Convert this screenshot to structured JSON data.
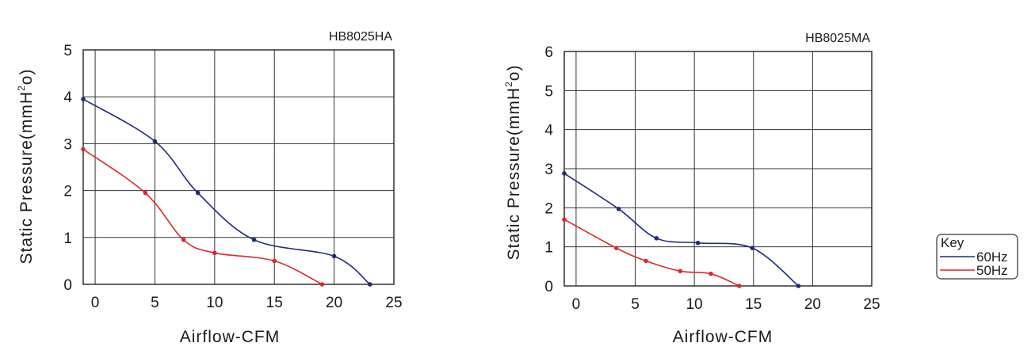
{
  "chart_data": [
    {
      "type": "line",
      "title": "HB8025HA",
      "xlabel": "Airflow-CFM",
      "ylabel_main": "Static Pressure(mmH",
      "ylabel_sup": "2",
      "ylabel_end": "o)",
      "xlim": [
        -1,
        25
      ],
      "ylim": [
        0,
        5
      ],
      "xticks": [
        "0",
        "5",
        "10",
        "15",
        "20",
        "25"
      ],
      "yticks": [
        "0",
        "1",
        "2",
        "3",
        "4",
        "5"
      ],
      "grid": true,
      "series": [
        {
          "name": "60Hz",
          "color": "#1f2a7a",
          "x": [
            -1,
            5,
            8.6,
            13.3,
            20,
            23
          ],
          "y": [
            3.95,
            3.05,
            1.95,
            0.95,
            0.6,
            0
          ]
        },
        {
          "name": "50Hz",
          "color": "#e0262a",
          "x": [
            -1,
            4.2,
            7.4,
            10,
            15,
            19
          ],
          "y": [
            2.88,
            1.95,
            0.95,
            0.67,
            0.5,
            0
          ]
        }
      ]
    },
    {
      "type": "line",
      "title": "HB8025MA",
      "xlabel": "Airflow-CFM",
      "ylabel_main": "Static Pressure(mmH",
      "ylabel_sup": "2",
      "ylabel_end": "o)",
      "xlim": [
        -1,
        25
      ],
      "ylim": [
        0,
        6
      ],
      "xticks": [
        "0",
        "5",
        "10",
        "15",
        "20",
        "25"
      ],
      "yticks": [
        "0",
        "1",
        "2",
        "3",
        "4",
        "5",
        "6"
      ],
      "grid": true,
      "series": [
        {
          "name": "60Hz",
          "color": "#1f2a7a",
          "x": [
            -1,
            3.6,
            6.8,
            10.3,
            14.9,
            18.8
          ],
          "y": [
            2.88,
            1.97,
            1.22,
            1.1,
            0.97,
            0
          ]
        },
        {
          "name": "50Hz",
          "color": "#e0262a",
          "x": [
            -1,
            3.4,
            5.9,
            8.8,
            11.4,
            13.8
          ],
          "y": [
            1.7,
            0.97,
            0.64,
            0.38,
            0.31,
            0
          ]
        }
      ]
    }
  ],
  "legend": {
    "title": "Key",
    "items": [
      {
        "label": "60Hz",
        "color": "#1f2a7a"
      },
      {
        "label": "50Hz",
        "color": "#e0262a"
      }
    ]
  }
}
